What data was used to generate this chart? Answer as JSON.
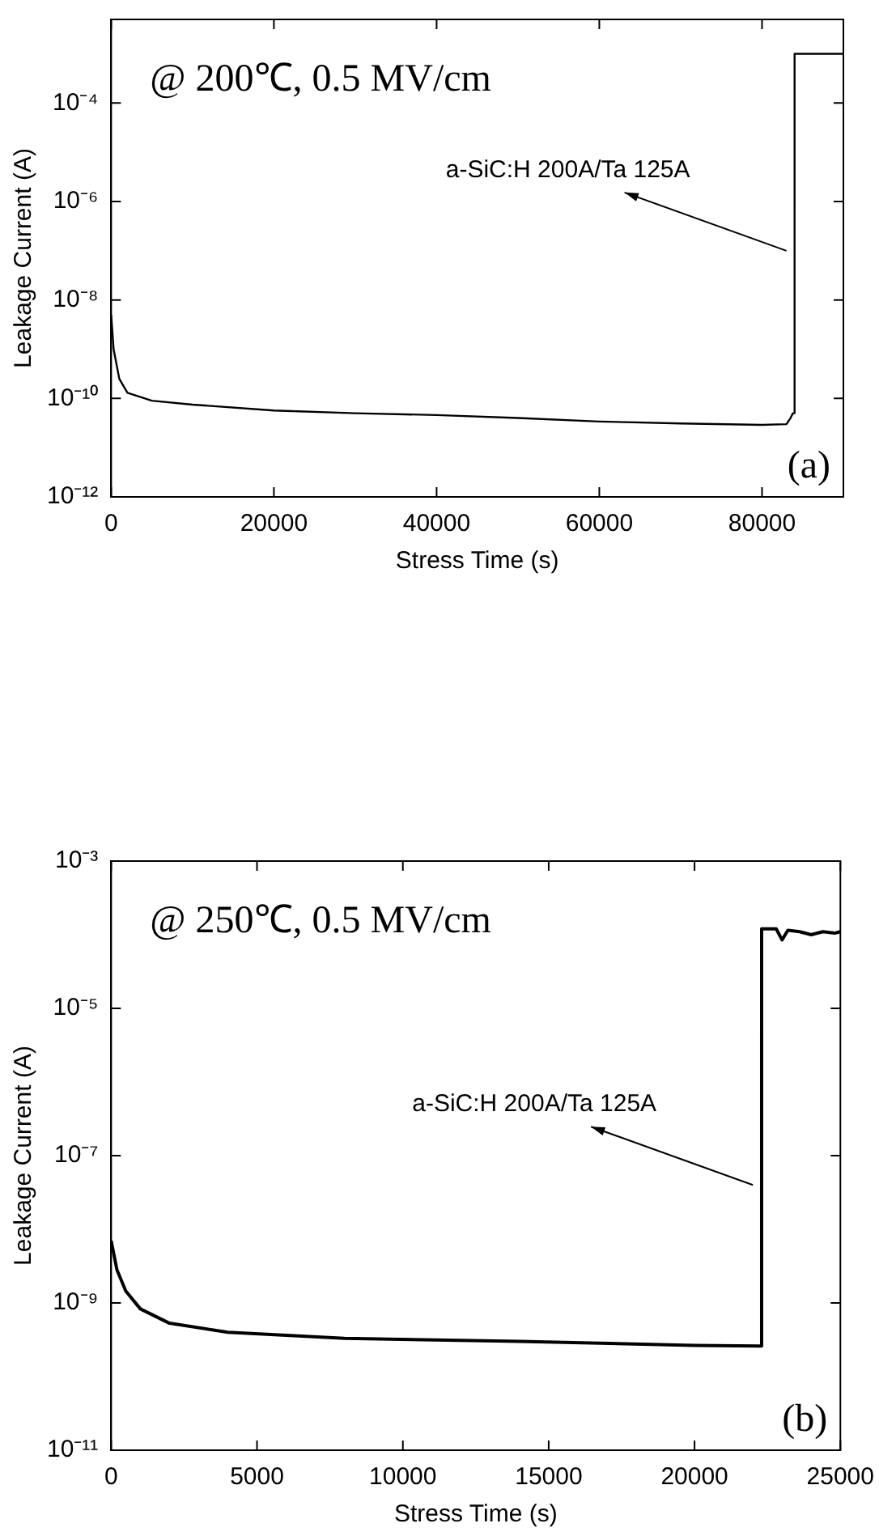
{
  "chart_data": [
    {
      "type": "line",
      "xlabel": "Stress Time (s)",
      "ylabel": "Leakage Current (A)",
      "log": true,
      "xlim": [
        0,
        90000
      ],
      "xticks": [
        0,
        20000,
        40000,
        60000,
        80000
      ],
      "ylim": [
        1e-12,
        0.005
      ],
      "yticks": [
        {
          "value": 1e-12,
          "label": "10⁻¹²"
        },
        {
          "value": 1e-10,
          "label": "10⁻¹⁰"
        },
        {
          "value": 1e-08,
          "label": "10⁻⁸"
        },
        {
          "value": 1e-06,
          "label": "10⁻⁶"
        },
        {
          "value": 0.0001,
          "label": "10⁻⁴"
        }
      ],
      "series": [
        {
          "color": "#000000",
          "x": [
            0,
            300,
            1000,
            2000,
            5000,
            10000,
            20000,
            30000,
            40000,
            50000,
            60000,
            70000,
            80000,
            83000,
            83500,
            83800,
            84000,
            84000,
            90000
          ],
          "values": [
            5e-09,
            1e-09,
            2.5e-10,
            1.3e-10,
            9e-11,
            7.5e-11,
            5.7e-11,
            5e-11,
            4.6e-11,
            4e-11,
            3.4e-11,
            3.1e-11,
            2.9e-11,
            3e-11,
            4e-11,
            5e-11,
            5e-11,
            0.001,
            0.001
          ]
        }
      ],
      "annotations": [
        "@ 200℃, 0.5 MV/cm",
        "(a)",
        {
          "text": "a-SiC:H 200A/Ta 125A",
          "x": 83000,
          "y": 1e-07
        }
      ]
    },
    {
      "type": "line",
      "xlabel": "Stress Time (s)",
      "ylabel": "Leakage Current (A)",
      "log": true,
      "xlim": [
        0,
        25000
      ],
      "xticks": [
        0,
        5000,
        10000,
        15000,
        20000,
        25000
      ],
      "ylim": [
        1e-11,
        0.001
      ],
      "yticks": [
        {
          "value": 1e-11,
          "label": "10⁻¹¹"
        },
        {
          "value": 1e-09,
          "label": "10⁻⁹"
        },
        {
          "value": 1e-07,
          "label": "10⁻⁷"
        },
        {
          "value": 1e-05,
          "label": "10⁻⁵"
        },
        {
          "value": 0.001,
          "label": "10⁻³"
        }
      ],
      "series": [
        {
          "color": "#000000",
          "x": [
            0,
            200,
            500,
            1000,
            2000,
            4000,
            8000,
            14000,
            20000,
            22200,
            22300,
            22300,
            22800,
            23000,
            23200,
            23600,
            24000,
            24400,
            24800,
            25000
          ],
          "values": [
            7e-09,
            2.8e-09,
            1.45e-09,
            8.3e-10,
            5.3e-10,
            4e-10,
            3.3e-10,
            3e-10,
            2.65e-10,
            2.6e-10,
            2.6e-10,
            0.00012,
            0.00012,
            8.5e-05,
            0.000115,
            0.00011,
            0.0001,
            0.00011,
            0.000105,
            0.00011
          ]
        }
      ],
      "annotations": [
        "@ 250℃, 0.5 MV/cm",
        "(b)",
        {
          "text": "a-SiC:H 200A/Ta 125A",
          "x": 22000,
          "y": 4e-08
        }
      ]
    }
  ]
}
